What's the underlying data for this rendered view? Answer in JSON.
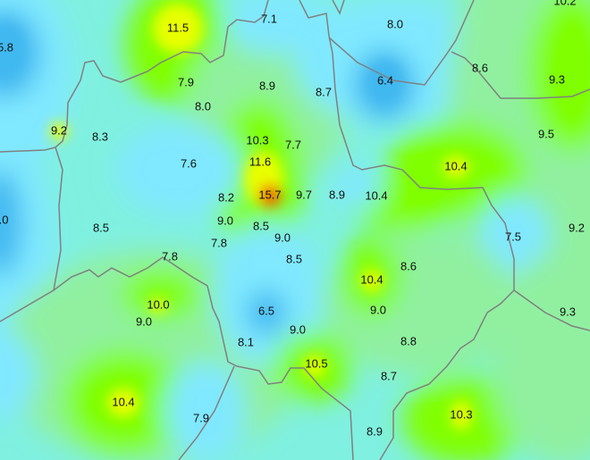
{
  "map": {
    "type": "contour-heatmap",
    "colors": {
      "base": "#80f0e0",
      "low": "#40b8f0",
      "cool": "#80e8ff",
      "mild": "#90f0a0",
      "warm": "#80ff00",
      "hot": "#e8ff00",
      "peak": "#f07000",
      "border": "#808080"
    },
    "labels": [
      "5.8",
      "11.5",
      "7.1",
      "8.0",
      "10.2",
      "6.4",
      "8.6",
      "9.3",
      "7.9",
      "8.9",
      "8.7",
      "8.0",
      "9.2",
      "8.3",
      "10.3",
      "7.7",
      "9.5",
      "7.6",
      "11.6",
      "10.4",
      "8.2",
      "15.7",
      "9.7",
      "8.9",
      "10.4",
      ".0",
      "8.5",
      "9.0",
      "8.5",
      "9.0",
      "7.8",
      "7.5",
      "9.2",
      "7.8",
      "8.5",
      "8.6",
      "10.4",
      "10.0",
      "9.0",
      "6.5",
      "9.0",
      "9.3",
      "9.0",
      "8.1",
      "8.8",
      "10.5",
      "8.7",
      "10.4",
      "10.3",
      "7.9",
      "8.9"
    ]
  }
}
